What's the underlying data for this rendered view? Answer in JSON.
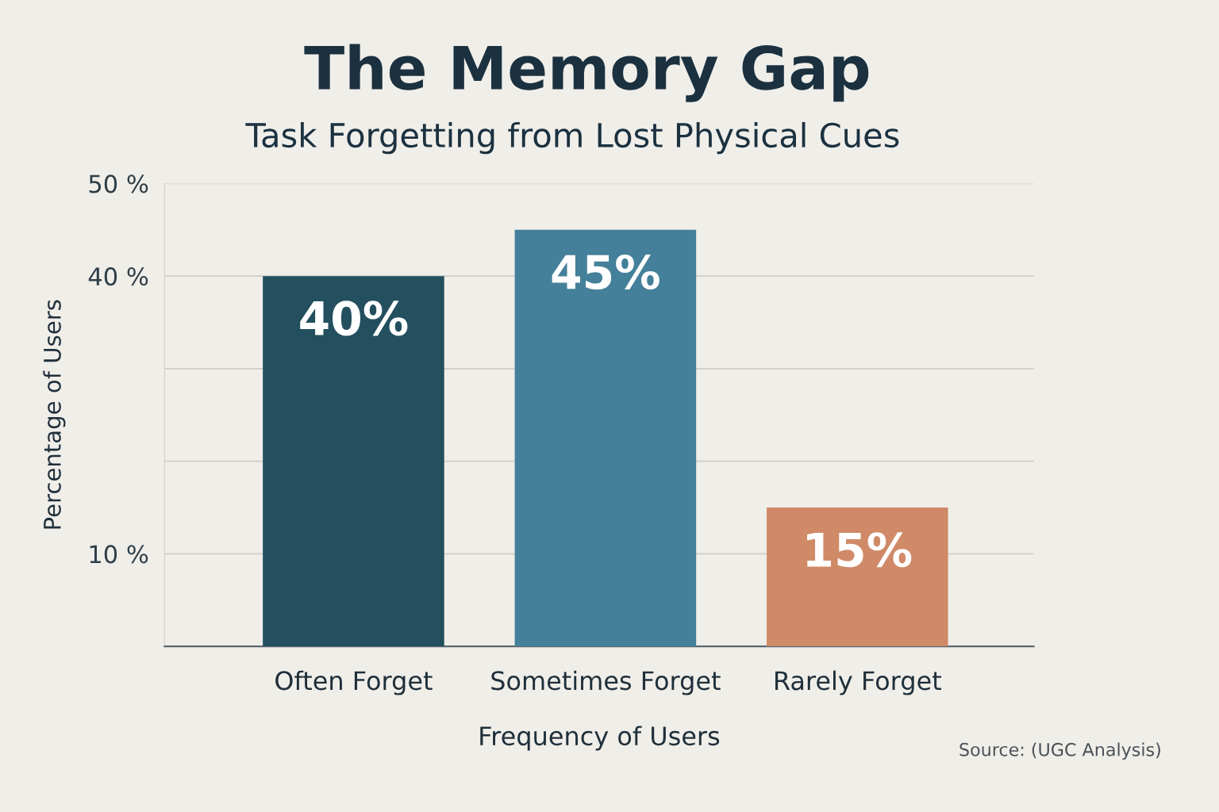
{
  "chart_data": {
    "type": "bar",
    "title": "The Memory Gap",
    "subtitle": "Task Forgetting from Lost Physical Cues",
    "xlabel": "Frequency of Users",
    "ylabel": "Percentage of Users",
    "categories": [
      "Often Forget",
      "Sometimes Forget",
      "Rarely Forget"
    ],
    "values": [
      40,
      45,
      15
    ],
    "colors": [
      "#234f5f",
      "#44809a",
      "#d08a68"
    ],
    "data_labels": true,
    "value_labels": [
      "40%",
      "45%",
      "15%"
    ],
    "ylim": [
      0,
      50
    ],
    "yticks": [
      {
        "value": 10,
        "label": "10 %"
      },
      {
        "value": 20,
        "label": null
      },
      {
        "value": 30,
        "label": null
      },
      {
        "value": 40,
        "label": "40 %"
      },
      {
        "value": 50,
        "label": "50 %"
      }
    ],
    "grid": "y",
    "legend": false,
    "annotations": [
      "Source: (UGC Analysis)"
    ]
  }
}
